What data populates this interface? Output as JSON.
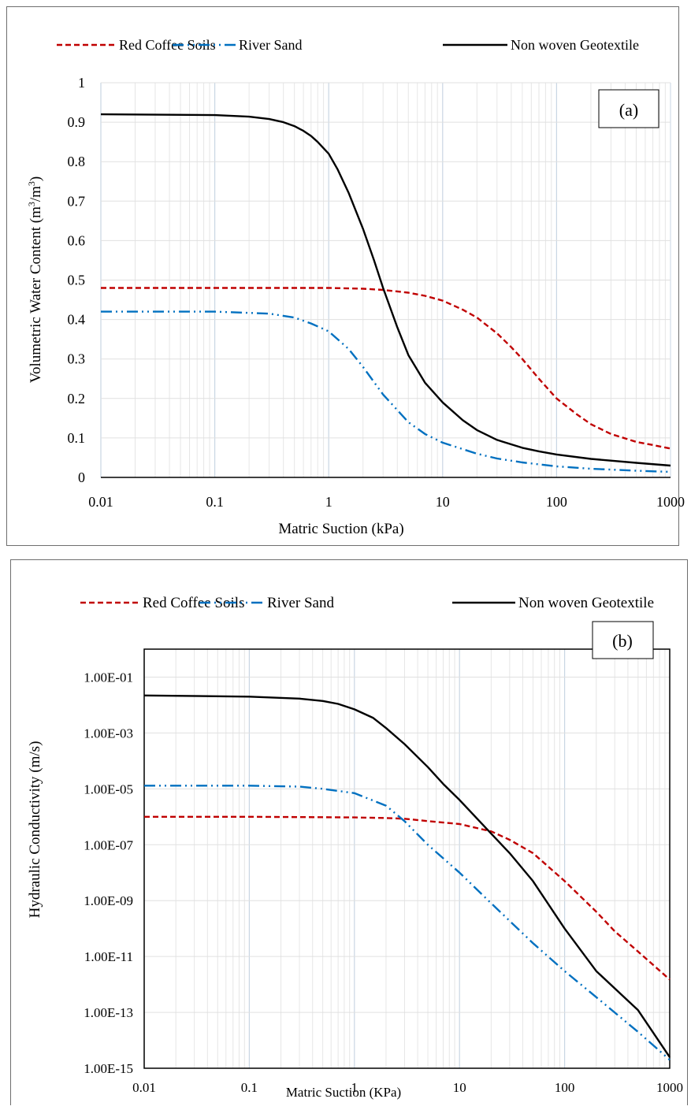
{
  "chart_data": [
    {
      "type": "line",
      "panel_label": "(a)",
      "xlabel": "Matric Suction (kPa)",
      "ylabel_main": "Volumetric Water Content (m",
      "ylabel_sup1": "3",
      "ylabel_mid": "/m",
      "ylabel_sup2": "3",
      "ylabel_end": ")",
      "x_scale": "log",
      "xlim": [
        0.01,
        1000
      ],
      "ylim": [
        0,
        1
      ],
      "x_ticks": [
        "0.01",
        "0.1",
        "1",
        "10",
        "100",
        "1000"
      ],
      "y_ticks": [
        "0",
        "0.1",
        "0.2",
        "0.3",
        "0.4",
        "0.5",
        "0.6",
        "0.7",
        "0.8",
        "0.9",
        "1"
      ],
      "grid": true,
      "legend_position": "top",
      "series": [
        {
          "name": "Red Coffee Soils",
          "color": "#c00000",
          "style": "dashed",
          "x": [
            0.01,
            0.1,
            0.5,
            1,
            2,
            3,
            5,
            7,
            10,
            15,
            20,
            30,
            40,
            50,
            70,
            100,
            150,
            200,
            300,
            500,
            700,
            1000
          ],
          "y": [
            0.48,
            0.48,
            0.48,
            0.48,
            0.478,
            0.475,
            0.468,
            0.46,
            0.448,
            0.425,
            0.405,
            0.365,
            0.33,
            0.3,
            0.25,
            0.2,
            0.16,
            0.135,
            0.11,
            0.09,
            0.082,
            0.073
          ]
        },
        {
          "name": "River Sand",
          "color": "#0070c0",
          "style": "dashdotdot",
          "x": [
            0.01,
            0.1,
            0.3,
            0.5,
            0.7,
            1,
            1.5,
            2,
            3,
            5,
            7,
            10,
            20,
            30,
            50,
            100,
            200,
            500,
            1000
          ],
          "y": [
            0.42,
            0.42,
            0.415,
            0.405,
            0.39,
            0.37,
            0.325,
            0.28,
            0.21,
            0.14,
            0.11,
            0.088,
            0.06,
            0.048,
            0.038,
            0.028,
            0.022,
            0.017,
            0.014
          ]
        },
        {
          "name": "Non woven Geotextile",
          "color": "#000000",
          "style": "solid",
          "x": [
            0.01,
            0.1,
            0.2,
            0.3,
            0.4,
            0.5,
            0.6,
            0.7,
            0.8,
            1,
            1.2,
            1.5,
            2,
            2.5,
            3,
            4,
            5,
            7,
            10,
            15,
            20,
            30,
            50,
            70,
            100,
            200,
            500,
            1000
          ],
          "y": [
            0.92,
            0.918,
            0.914,
            0.908,
            0.9,
            0.89,
            0.878,
            0.865,
            0.85,
            0.82,
            0.78,
            0.72,
            0.63,
            0.55,
            0.48,
            0.38,
            0.31,
            0.24,
            0.19,
            0.145,
            0.12,
            0.095,
            0.075,
            0.066,
            0.058,
            0.047,
            0.037,
            0.03
          ]
        }
      ]
    },
    {
      "type": "line",
      "panel_label": "(b)",
      "xlabel": "Matric Suction (KPa)",
      "ylabel": "Hydraulic Conductivity (m/s)",
      "x_scale": "log",
      "y_scale": "log",
      "xlim": [
        0.01,
        1000
      ],
      "ylim": [
        1e-15,
        1
      ],
      "x_ticks": [
        "0.01",
        "0.1",
        "1",
        "10",
        "100",
        "1000"
      ],
      "y_ticks": [
        "1.00E-15",
        "1.00E-13",
        "1.00E-11",
        "1.00E-09",
        "1.00E-07",
        "1.00E-05",
        "1.00E-03",
        "1.00E-01"
      ],
      "grid": true,
      "legend_position": "top",
      "series": [
        {
          "name": "Red Coffee Soils",
          "color": "#c00000",
          "style": "dashed",
          "x": [
            0.01,
            0.1,
            1,
            2,
            3,
            5,
            10,
            20,
            30,
            50,
            100,
            200,
            300,
            500,
            1000
          ],
          "y": [
            1e-06,
            1e-06,
            9.5e-07,
            9e-07,
            8.5e-07,
            7e-07,
            5.5e-07,
            3e-07,
            1.5e-07,
            5e-08,
            5e-09,
            4e-10,
            8e-11,
            1.5e-11,
            1.5e-12
          ]
        },
        {
          "name": "River Sand",
          "color": "#0070c0",
          "style": "dashdotdot",
          "x": [
            0.01,
            0.1,
            0.3,
            0.5,
            1,
            2,
            3,
            5,
            10,
            20,
            50,
            100,
            200,
            500,
            1000
          ],
          "y": [
            1.3e-05,
            1.3e-05,
            1.2e-05,
            1e-05,
            7e-06,
            2.5e-06,
            7e-07,
            1e-07,
            1e-08,
            8e-10,
            3e-11,
            3e-12,
            3.5e-13,
            2e-14,
            2e-15
          ]
        },
        {
          "name": "Non woven Geotextile",
          "color": "#000000",
          "style": "solid",
          "x": [
            0.01,
            0.1,
            0.3,
            0.5,
            0.7,
            1,
            1.5,
            2,
            3,
            5,
            7,
            10,
            20,
            30,
            50,
            100,
            200,
            500,
            1000
          ],
          "y": [
            0.022,
            0.02,
            0.017,
            0.014,
            0.011,
            0.007,
            0.0035,
            0.0015,
            0.0004,
            6e-05,
            1.5e-05,
            4e-06,
            2.5e-07,
            5e-08,
            5e-09,
            1e-10,
            3e-12,
            1.2e-13,
            2.5e-15
          ]
        }
      ]
    }
  ]
}
